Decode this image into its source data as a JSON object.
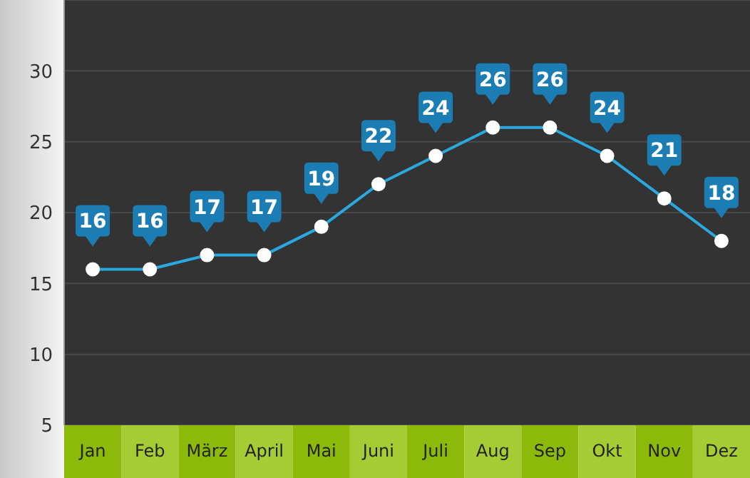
{
  "chart_data": {
    "type": "line",
    "categories": [
      "Jan",
      "Feb",
      "März",
      "April",
      "Mai",
      "Juni",
      "Juli",
      "Aug",
      "Sep",
      "Okt",
      "Nov",
      "Dez"
    ],
    "series": [
      {
        "color": "#29a9e0",
        "values": [
          16,
          16,
          17,
          17,
          19,
          22,
          24,
          26,
          26,
          24,
          21,
          18
        ]
      }
    ],
    "ylim": [
      5,
      35
    ],
    "yticks": [
      5,
      10,
      15,
      20,
      25,
      30
    ],
    "grid": true,
    "data_labels": true,
    "marker": "circle",
    "line_style": "solid"
  }
}
